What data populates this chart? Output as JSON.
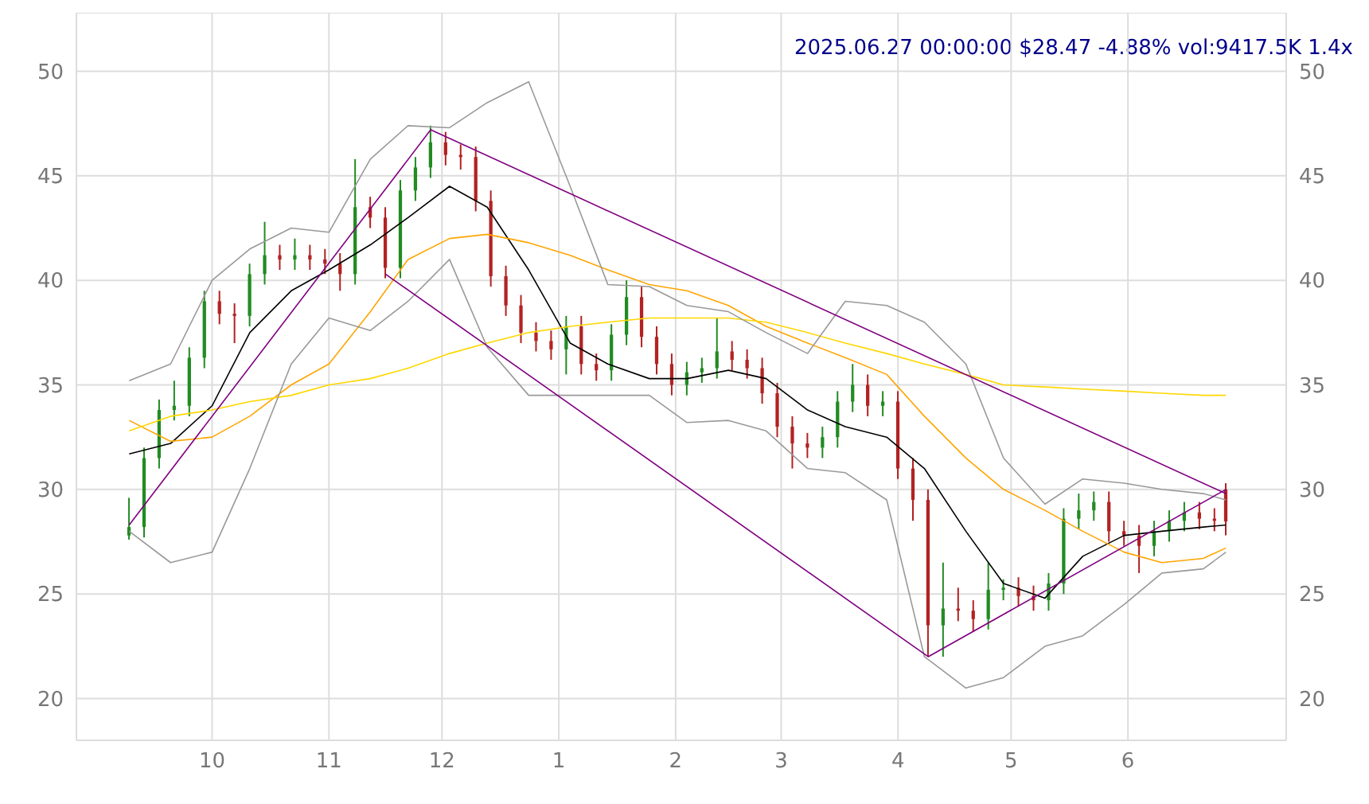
{
  "chart_data": {
    "type": "candlestick",
    "title": "2025.06.27 00:00:00 $28.47 -4.88% vol:9417.5K 1.4x",
    "x": [
      "2024-09-09",
      "2024-09-13",
      "2024-09-17",
      "2024-09-21",
      "2024-09-25",
      "2024-09-29",
      "2024-10-03",
      "2024-10-07",
      "2024-10-11",
      "2024-10-15",
      "2024-10-19",
      "2024-10-23",
      "2024-10-27",
      "2024-10-31",
      "2024-11-04",
      "2024-11-08",
      "2024-11-12",
      "2024-11-16",
      "2024-11-20",
      "2024-11-24",
      "2024-11-28",
      "2024-12-02",
      "2024-12-06",
      "2024-12-10",
      "2024-12-14",
      "2024-12-18",
      "2024-12-22",
      "2024-12-26",
      "2024-12-30",
      "2025-01-03",
      "2025-01-07",
      "2025-01-11",
      "2025-01-15",
      "2025-01-19",
      "2025-01-23",
      "2025-01-27",
      "2025-01-31",
      "2025-02-04",
      "2025-02-08",
      "2025-02-12",
      "2025-02-16",
      "2025-02-20",
      "2025-02-24",
      "2025-02-28",
      "2025-03-04",
      "2025-03-08",
      "2025-03-12",
      "2025-03-16",
      "2025-03-20",
      "2025-03-24",
      "2025-03-28",
      "2025-04-01",
      "2025-04-05",
      "2025-04-09",
      "2025-04-13",
      "2025-04-17",
      "2025-04-21",
      "2025-04-25",
      "2025-04-29",
      "2025-05-03",
      "2025-05-07",
      "2025-05-11",
      "2025-05-15",
      "2025-05-19",
      "2025-05-23",
      "2025-05-27",
      "2025-05-31",
      "2025-06-04",
      "2025-06-08",
      "2025-06-12",
      "2025-06-16",
      "2025-06-20",
      "2025-06-24",
      "2025-06-27"
    ],
    "ohlc": [
      [
        27.8,
        29.6,
        27.6,
        28.2
      ],
      [
        28.2,
        32.0,
        27.7,
        31.5
      ],
      [
        31.5,
        34.3,
        31.0,
        33.8
      ],
      [
        33.8,
        35.2,
        33.3,
        34.0
      ],
      [
        34.0,
        36.8,
        33.5,
        36.3
      ],
      [
        36.3,
        39.5,
        35.8,
        39.0
      ],
      [
        39.0,
        39.5,
        37.9,
        38.4
      ],
      [
        38.4,
        38.9,
        37.0,
        38.3
      ],
      [
        38.3,
        40.8,
        37.8,
        40.3
      ],
      [
        40.3,
        42.8,
        39.8,
        41.2
      ],
      [
        41.2,
        41.7,
        40.5,
        41.0
      ],
      [
        41.0,
        42.0,
        40.5,
        41.2
      ],
      [
        41.2,
        41.7,
        40.5,
        41.0
      ],
      [
        41.0,
        41.5,
        40.3,
        40.8
      ],
      [
        40.8,
        41.3,
        39.5,
        40.3
      ],
      [
        40.3,
        45.8,
        39.8,
        43.5
      ],
      [
        43.5,
        44.0,
        42.5,
        43.0
      ],
      [
        43.0,
        43.5,
        40.1,
        40.6
      ],
      [
        40.6,
        44.8,
        40.1,
        44.3
      ],
      [
        44.3,
        45.9,
        43.8,
        45.4
      ],
      [
        45.4,
        47.4,
        44.9,
        46.6
      ],
      [
        46.6,
        47.1,
        45.5,
        46.0
      ],
      [
        46.0,
        46.5,
        45.3,
        45.9
      ],
      [
        45.9,
        46.4,
        43.3,
        43.8
      ],
      [
        43.8,
        44.3,
        39.7,
        40.2
      ],
      [
        40.2,
        40.7,
        38.3,
        38.8
      ],
      [
        38.8,
        39.3,
        37.0,
        37.5
      ],
      [
        37.5,
        38.0,
        36.6,
        37.1
      ],
      [
        37.1,
        37.6,
        36.2,
        36.7
      ],
      [
        36.7,
        38.3,
        35.5,
        37.8
      ],
      [
        37.8,
        38.3,
        35.5,
        36.0
      ],
      [
        36.0,
        36.5,
        35.2,
        35.7
      ],
      [
        35.7,
        37.9,
        35.2,
        37.4
      ],
      [
        37.4,
        40.0,
        36.9,
        39.2
      ],
      [
        39.2,
        39.7,
        36.8,
        37.3
      ],
      [
        37.3,
        37.8,
        35.5,
        36.0
      ],
      [
        36.0,
        36.5,
        34.5,
        35.0
      ],
      [
        35.0,
        36.1,
        34.5,
        35.6
      ],
      [
        35.6,
        36.3,
        35.1,
        35.8
      ],
      [
        35.8,
        38.2,
        35.3,
        36.6
      ],
      [
        36.6,
        37.1,
        35.7,
        36.2
      ],
      [
        36.2,
        36.7,
        35.3,
        35.8
      ],
      [
        35.8,
        36.3,
        34.1,
        34.6
      ],
      [
        34.6,
        35.1,
        32.5,
        33.0
      ],
      [
        33.0,
        33.5,
        31.0,
        32.2
      ],
      [
        32.2,
        32.7,
        31.5,
        32.0
      ],
      [
        32.0,
        33.0,
        31.5,
        32.5
      ],
      [
        32.5,
        34.7,
        32.0,
        34.2
      ],
      [
        34.2,
        36.0,
        33.7,
        35.0
      ],
      [
        35.0,
        35.5,
        33.5,
        34.0
      ],
      [
        34.0,
        34.7,
        33.5,
        34.2
      ],
      [
        34.2,
        34.7,
        30.5,
        31.0
      ],
      [
        31.0,
        31.5,
        28.5,
        29.5
      ],
      [
        29.5,
        30.0,
        22.0,
        23.5
      ],
      [
        23.5,
        26.5,
        22.0,
        24.3
      ],
      [
        24.3,
        25.3,
        23.7,
        24.2
      ],
      [
        24.2,
        24.7,
        23.2,
        23.8
      ],
      [
        23.8,
        26.5,
        23.3,
        25.2
      ],
      [
        25.2,
        25.7,
        24.7,
        25.3
      ],
      [
        25.3,
        25.8,
        24.4,
        24.9
      ],
      [
        24.9,
        25.4,
        24.2,
        24.7
      ],
      [
        24.7,
        26.0,
        24.2,
        25.5
      ],
      [
        25.5,
        29.1,
        25.0,
        28.6
      ],
      [
        28.6,
        29.8,
        28.1,
        29.0
      ],
      [
        29.0,
        29.9,
        28.5,
        29.4
      ],
      [
        29.4,
        29.9,
        27.5,
        28.0
      ],
      [
        28.0,
        28.5,
        27.3,
        27.8
      ],
      [
        27.8,
        28.3,
        26.0,
        27.3
      ],
      [
        27.3,
        28.5,
        26.8,
        28.0
      ],
      [
        28.0,
        29.0,
        27.5,
        28.5
      ],
      [
        28.5,
        29.4,
        28.0,
        28.9
      ],
      [
        28.9,
        29.4,
        28.1,
        28.6
      ],
      [
        28.6,
        29.1,
        28.0,
        28.5
      ],
      [
        30.0,
        30.3,
        27.8,
        28.47
      ]
    ],
    "series": [
      {
        "type": "line",
        "color": "#000000",
        "x": [
          "2024-09-09",
          "2024-09-20",
          "2024-10-01",
          "2024-10-11",
          "2024-10-22",
          "2024-11-01",
          "2024-11-12",
          "2024-11-22",
          "2024-12-03",
          "2024-12-13",
          "2024-12-24",
          "2025-01-04",
          "2025-01-14",
          "2025-01-25",
          "2025-02-04",
          "2025-02-15",
          "2025-02-25",
          "2025-03-08",
          "2025-03-18",
          "2025-03-29",
          "2025-04-08",
          "2025-04-19",
          "2025-04-29",
          "2025-05-10",
          "2025-05-20",
          "2025-05-31",
          "2025-06-10",
          "2025-06-21",
          "2025-06-27"
        ],
        "values": [
          31.7,
          32.2,
          34,
          37.5,
          39.5,
          40.5,
          41.7,
          43,
          44.5,
          43.5,
          40.5,
          37,
          36,
          35.3,
          35.3,
          35.7,
          35.3,
          33.8,
          33,
          32.5,
          31,
          28,
          25.5,
          24.8,
          26.8,
          27.8,
          28,
          28.2,
          28.3
        ]
      },
      {
        "type": "line",
        "color": "#ffa500",
        "x": [
          "2024-09-09",
          "2024-09-20",
          "2024-10-01",
          "2024-10-11",
          "2024-10-22",
          "2024-11-01",
          "2024-11-12",
          "2024-11-22",
          "2024-12-03",
          "2024-12-13",
          "2024-12-24",
          "2025-01-04",
          "2025-01-14",
          "2025-01-25",
          "2025-02-04",
          "2025-02-15",
          "2025-02-25",
          "2025-03-08",
          "2025-03-18",
          "2025-03-29",
          "2025-04-08",
          "2025-04-19",
          "2025-04-29",
          "2025-05-10",
          "2025-05-20",
          "2025-05-31",
          "2025-06-10",
          "2025-06-21",
          "2025-06-27"
        ],
        "values": [
          33.3,
          32.3,
          32.5,
          33.5,
          35,
          36,
          38.5,
          41,
          42,
          42.2,
          41.8,
          41.2,
          40.5,
          39.8,
          39.5,
          38.8,
          37.8,
          37,
          36.3,
          35.5,
          33.5,
          31.5,
          30,
          29,
          28,
          27,
          26.5,
          26.7,
          27.2
        ]
      },
      {
        "type": "line",
        "color": "#ffd700",
        "x": [
          "2024-09-09",
          "2024-09-20",
          "2024-10-01",
          "2024-10-11",
          "2024-10-22",
          "2024-11-01",
          "2024-11-12",
          "2024-11-22",
          "2024-12-03",
          "2024-12-13",
          "2024-12-24",
          "2025-01-04",
          "2025-01-14",
          "2025-01-25",
          "2025-02-04",
          "2025-02-15",
          "2025-02-25",
          "2025-03-08",
          "2025-03-18",
          "2025-03-29",
          "2025-04-08",
          "2025-04-19",
          "2025-04-29",
          "2025-05-10",
          "2025-05-20",
          "2025-05-31",
          "2025-06-10",
          "2025-06-21",
          "2025-06-27"
        ],
        "values": [
          32.8,
          33.5,
          33.8,
          34.2,
          34.5,
          35,
          35.3,
          35.8,
          36.5,
          37,
          37.5,
          37.8,
          38,
          38.2,
          38.2,
          38.2,
          38,
          37.5,
          37,
          36.5,
          36,
          35.5,
          35,
          34.9,
          34.8,
          34.7,
          34.6,
          34.5,
          34.5
        ]
      },
      {
        "type": "line",
        "color": "#999999",
        "x": [
          "2024-09-09",
          "2024-09-20",
          "2024-10-01",
          "2024-10-11",
          "2024-10-22",
          "2024-11-01",
          "2024-11-12",
          "2024-11-22",
          "2024-12-03",
          "2024-12-13",
          "2024-12-24",
          "2025-01-04",
          "2025-01-14",
          "2025-01-25",
          "2025-02-04",
          "2025-02-15",
          "2025-02-25",
          "2025-03-08",
          "2025-03-18",
          "2025-03-29",
          "2025-04-08",
          "2025-04-19",
          "2025-04-29",
          "2025-05-10",
          "2025-05-20",
          "2025-05-31",
          "2025-06-10",
          "2025-06-21",
          "2025-06-27"
        ],
        "values": [
          35.2,
          36,
          40,
          41.5,
          42.5,
          42.3,
          45.8,
          47.4,
          47.3,
          48.5,
          49.5,
          44.5,
          39.8,
          39.7,
          38.8,
          38.5,
          37.5,
          36.5,
          39,
          38.8,
          38,
          36,
          31.5,
          29.3,
          30.5,
          30.3,
          30,
          29.8,
          29.5
        ]
      },
      {
        "type": "line",
        "color": "#999999",
        "x": [
          "2024-09-09",
          "2024-09-20",
          "2024-10-01",
          "2024-10-11",
          "2024-10-22",
          "2024-11-01",
          "2024-11-12",
          "2024-11-22",
          "2024-12-03",
          "2024-12-13",
          "2024-12-24",
          "2025-01-04",
          "2025-01-14",
          "2025-01-25",
          "2025-02-04",
          "2025-02-15",
          "2025-02-25",
          "2025-03-08",
          "2025-03-18",
          "2025-03-29",
          "2025-04-08",
          "2025-04-19",
          "2025-04-29",
          "2025-05-10",
          "2025-05-20",
          "2025-05-31",
          "2025-06-10",
          "2025-06-21",
          "2025-06-27"
        ],
        "values": [
          28,
          26.5,
          27,
          31,
          36,
          38.2,
          37.6,
          39,
          41,
          36.8,
          34.5,
          34.5,
          34.5,
          34.5,
          33.2,
          33.3,
          32.8,
          31,
          30.8,
          29.5,
          22,
          20.5,
          21,
          22.5,
          23,
          24.5,
          26,
          26.2,
          27
        ]
      },
      {
        "type": "line",
        "color": "#800080",
        "x": [
          "2024-09-09",
          "2024-11-28",
          "2025-06-27"
        ],
        "values": [
          28.3,
          47.2,
          29.8
        ]
      },
      {
        "type": "line",
        "color": "#800080",
        "x": [
          "2024-11-16",
          "2025-04-09",
          "2025-06-27"
        ],
        "values": [
          40.3,
          22.0,
          30.0
        ]
      }
    ],
    "xlim": [
      "2024-08-26",
      "2025-07-13"
    ],
    "xticks": [
      {
        "value": "2024-10-01",
        "label": "10"
      },
      {
        "value": "2024-11-01",
        "label": "11"
      },
      {
        "value": "2024-12-01",
        "label": "12"
      },
      {
        "value": "2025-01-01",
        "label": "1"
      },
      {
        "value": "2025-02-01",
        "label": "2"
      },
      {
        "value": "2025-03-01",
        "label": "3"
      },
      {
        "value": "2025-04-01",
        "label": "4"
      },
      {
        "value": "2025-05-01",
        "label": "5"
      },
      {
        "value": "2025-06-01",
        "label": "6"
      }
    ],
    "ylim": [
      18,
      52.8
    ],
    "yticks": [
      20,
      25,
      30,
      35,
      40,
      45,
      50
    ],
    "y2lim": [
      18,
      52.8
    ],
    "y2ticks": [
      20,
      25,
      30,
      35,
      40,
      45,
      50
    ],
    "grid": true,
    "marker": "none",
    "line_style": "solid"
  }
}
